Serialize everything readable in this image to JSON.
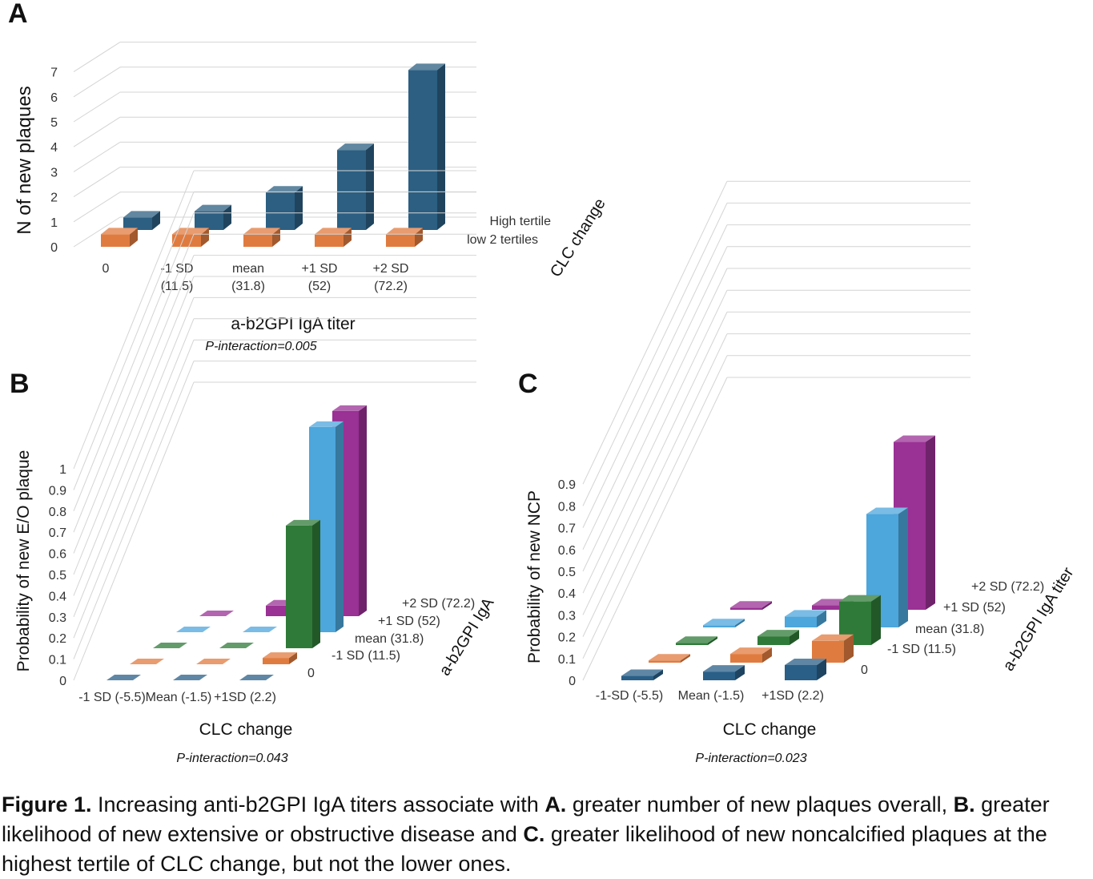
{
  "figure": {
    "caption": {
      "label": "Figure 1.",
      "seg1": " Increasing anti-b2GPI IgA titers associate with ",
      "A": "A.",
      "seg2": " greater number of new plaques overall, ",
      "B": "B.",
      "seg3": " greater likelihood of new extensive or obstructive disease and ",
      "C": "C.",
      "seg4": " greater likelihood of new noncalcified plaques at the highest tertile of CLC change, but not the lower ones."
    }
  },
  "chart_data": [
    {
      "panel": "A",
      "type": "bar",
      "subtype": "3d-clustered",
      "ylabel": "N of new plaques",
      "xlabel": "a-b2GPI IgA titer",
      "depth_label": "CLC change",
      "annotation": "P-interaction=0.005",
      "ylim": [
        0,
        7
      ],
      "y_ticks": [
        "0",
        "1",
        "2",
        "3",
        "4",
        "5",
        "6",
        "7"
      ],
      "categories": [
        [
          "0"
        ],
        [
          "-1 SD",
          "(11.5)"
        ],
        [
          "mean",
          "(31.8)"
        ],
        [
          "+1 SD",
          "(52)"
        ],
        [
          "+2 SD",
          "(72.2)"
        ]
      ],
      "series": [
        {
          "name": "low 2 tertiles",
          "color": "#e07b3f",
          "values": [
            0.5,
            0.5,
            0.5,
            0.5,
            0.5
          ]
        },
        {
          "name": "High tertile",
          "color": "#2c5f82",
          "values": [
            0.5,
            0.75,
            1.5,
            3.2,
            6.4
          ]
        }
      ]
    },
    {
      "panel": "B",
      "type": "bar",
      "subtype": "3d-clustered",
      "ylabel": "Probability of new E/O plaque",
      "xlabel": "CLC change",
      "depth_label": "a-b2GPI IgA",
      "annotation": "P-interaction=0.043",
      "ylim": [
        0,
        1
      ],
      "y_ticks": [
        "0",
        "0.1",
        "0.2",
        "0.3",
        "0.4",
        "0.5",
        "0.6",
        "0.7",
        "0.8",
        "0.9",
        "1"
      ],
      "categories": [
        "-1 SD (-5.5)",
        "Mean (-1.5)",
        "+1SD (2.2)"
      ],
      "series": [
        {
          "name": "0",
          "color": "#2a5f87",
          "values": [
            0.0,
            0.0,
            0.0
          ]
        },
        {
          "name": "-1 SD (11.5)",
          "color": "#e07b3f",
          "values": [
            0.0,
            0.0,
            0.03
          ]
        },
        {
          "name": "mean (31.8)",
          "color": "#2f7a38",
          "values": [
            0.0,
            0.0,
            0.58
          ]
        },
        {
          "name": "+1 SD (52)",
          "color": "#4da6dc",
          "values": [
            0.0,
            0.0,
            0.97
          ]
        },
        {
          "name": "+2 SD (72.2)",
          "color": "#9a3194",
          "values": [
            0.0,
            0.05,
            0.97
          ]
        }
      ]
    },
    {
      "panel": "C",
      "type": "bar",
      "subtype": "3d-clustered",
      "ylabel": "Probability of new NCP",
      "xlabel": "CLC change",
      "depth_label": "a-b2GPI IgA titer",
      "annotation": "P-interaction=0.023",
      "ylim": [
        0,
        0.9
      ],
      "y_ticks": [
        "0",
        "0.1",
        "0.2",
        "0.3",
        "0.4",
        "0.5",
        "0.6",
        "0.7",
        "0.8",
        "0.9"
      ],
      "categories": [
        "-1-SD (-5.5)",
        "Mean (-1.5)",
        "+1SD (2.2)"
      ],
      "series": [
        {
          "name": "0",
          "color": "#2a5f87",
          "values": [
            0.02,
            0.04,
            0.07
          ]
        },
        {
          "name": "-1 SD (11.5)",
          "color": "#e07b3f",
          "values": [
            0.01,
            0.04,
            0.1
          ]
        },
        {
          "name": "mean (31.8)",
          "color": "#2f7a38",
          "values": [
            0.01,
            0.04,
            0.2
          ]
        },
        {
          "name": "+1 SD (52)",
          "color": "#4da6dc",
          "values": [
            0.01,
            0.05,
            0.52
          ]
        },
        {
          "name": "+2 SD (72.2)",
          "color": "#9a3194",
          "values": [
            0.01,
            0.02,
            0.77
          ]
        }
      ]
    }
  ]
}
